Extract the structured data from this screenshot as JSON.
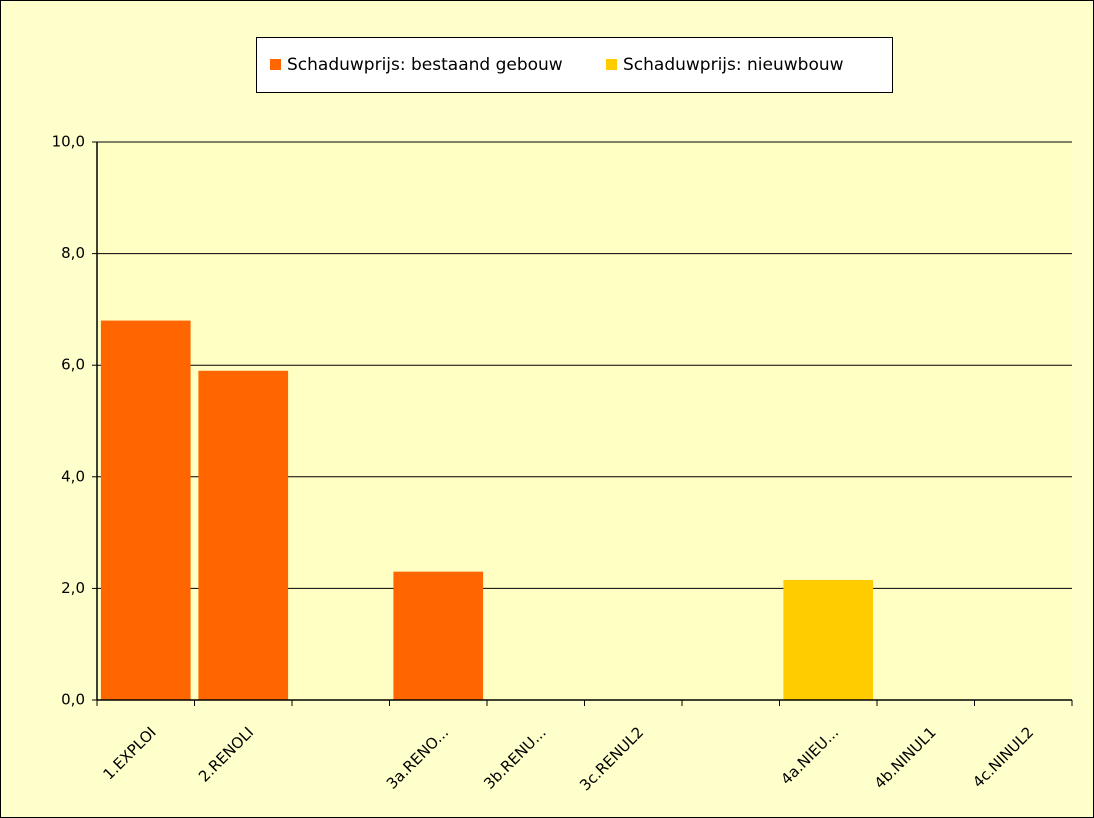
{
  "chart_data": {
    "type": "bar",
    "categories": [
      "1.EXPLOI",
      "2.RENOLI",
      null,
      "3a.RENO...",
      "3b.RENU...",
      "3c.RENUL2",
      null,
      "4a.NIEU...",
      "4b.NINUL1",
      "4c.NINUL2"
    ],
    "series": [
      {
        "name": "Schaduwprijs: bestaand gebouw",
        "color": "#ff6600",
        "values": [
          6.8,
          5.9,
          null,
          2.3,
          0,
          0,
          null,
          null,
          null,
          null
        ]
      },
      {
        "name": "Schaduwprijs: nieuwbouw",
        "color": "#ffcc00",
        "values": [
          null,
          null,
          null,
          null,
          null,
          null,
          null,
          2.15,
          0,
          0
        ]
      }
    ],
    "ylim": [
      0,
      10
    ],
    "yticks": [
      {
        "value": 0,
        "label": "0,0"
      },
      {
        "value": 2,
        "label": "2,0"
      },
      {
        "value": 4,
        "label": "4,0"
      },
      {
        "value": 6,
        "label": "6,0"
      },
      {
        "value": 8,
        "label": "8,0"
      },
      {
        "value": 10,
        "label": "10,0"
      }
    ],
    "grid": true,
    "legend": "top"
  }
}
